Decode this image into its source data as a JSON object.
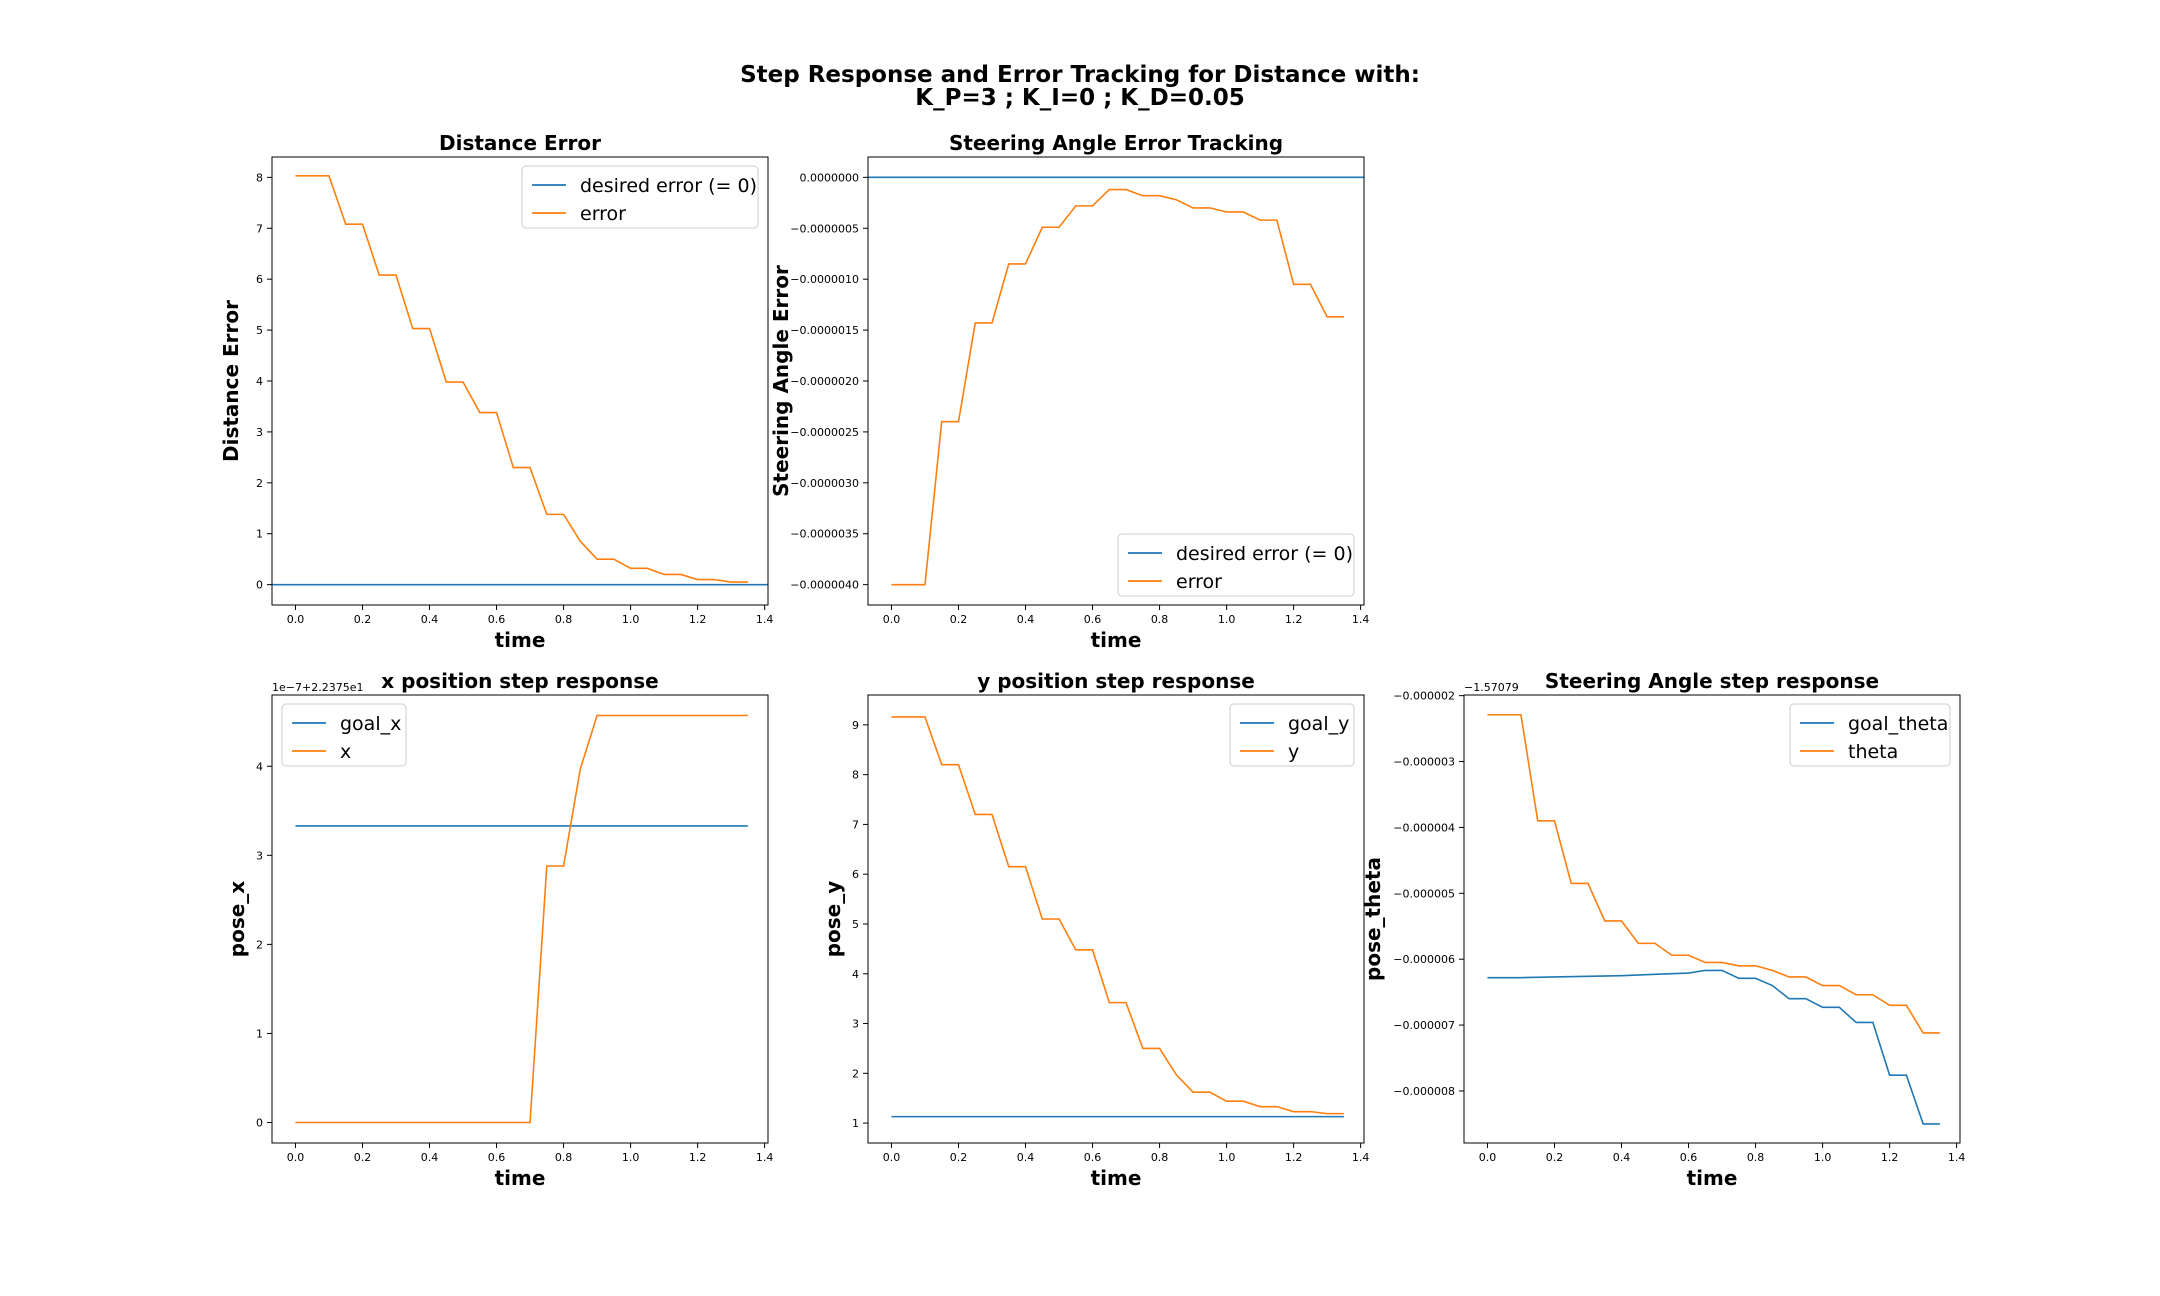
{
  "figure": {
    "title_line1": "Step Response and Error Tracking for Distance with:",
    "title_line2": "K_P=3 ; K_I=0 ; K_D=0.05"
  },
  "colors": {
    "blue": "#1f77b4",
    "orange": "#ff7f0e"
  },
  "chart_data": [
    {
      "type": "line",
      "title": "Distance Error",
      "xlabel": "time",
      "ylabel": "Distance Error",
      "xlim": [
        -0.07,
        1.41
      ],
      "ylim": [
        -0.4,
        8.4
      ],
      "xticks": [
        0.0,
        0.2,
        0.4,
        0.6,
        0.8,
        1.0,
        1.2,
        1.4
      ],
      "xtick_labels": [
        "0.0",
        "0.2",
        "0.4",
        "0.6",
        "0.8",
        "1.0",
        "1.2",
        "1.4"
      ],
      "yticks": [
        0,
        1,
        2,
        3,
        4,
        5,
        6,
        7,
        8
      ],
      "ytick_labels": [
        "0",
        "1",
        "2",
        "3",
        "4",
        "5",
        "6",
        "7",
        "8"
      ],
      "legend": "top-right",
      "series": [
        {
          "name": "desired error (= 0)",
          "color": "#1f77b4",
          "x": [
            -0.07,
            1.41
          ],
          "y": [
            0,
            0
          ]
        },
        {
          "name": "error",
          "color": "#ff7f0e",
          "x": [
            0.0,
            0.1,
            0.15,
            0.2,
            0.25,
            0.3,
            0.35,
            0.4,
            0.45,
            0.5,
            0.55,
            0.6,
            0.65,
            0.7,
            0.75,
            0.8,
            0.85,
            0.9,
            0.95,
            1.0,
            1.05,
            1.1,
            1.15,
            1.2,
            1.25,
            1.3,
            1.35
          ],
          "y": [
            8.03,
            8.03,
            7.08,
            7.08,
            6.08,
            6.08,
            5.03,
            5.03,
            3.98,
            3.98,
            3.38,
            3.38,
            2.3,
            2.3,
            1.38,
            1.38,
            0.85,
            0.5,
            0.5,
            0.32,
            0.32,
            0.2,
            0.2,
            0.1,
            0.1,
            0.05,
            0.05
          ]
        }
      ]
    },
    {
      "type": "line",
      "title": "Steering Angle Error Tracking",
      "xlabel": "time",
      "ylabel": "Steering Angle Error",
      "xlim": [
        -0.07,
        1.41
      ],
      "ylim": [
        -4.2e-06,
        2e-07
      ],
      "xticks": [
        0.0,
        0.2,
        0.4,
        0.6,
        0.8,
        1.0,
        1.2,
        1.4
      ],
      "xtick_labels": [
        "0.0",
        "0.2",
        "0.4",
        "0.6",
        "0.8",
        "1.0",
        "1.2",
        "1.4"
      ],
      "yticks": [
        0.0,
        -5e-07,
        -1e-06,
        -1.5e-06,
        -2e-06,
        -2.5e-06,
        -3e-06,
        -3.5e-06,
        -4e-06
      ],
      "ytick_labels": [
        "0.0000000",
        "−0.0000005",
        "−0.0000010",
        "−0.0000015",
        "−0.0000020",
        "−0.0000025",
        "−0.0000030",
        "−0.0000035",
        "−0.0000040"
      ],
      "legend": "bottom-right",
      "series": [
        {
          "name": "desired error (= 0)",
          "color": "#1f77b4",
          "x": [
            -0.07,
            1.41
          ],
          "y": [
            0,
            0
          ]
        },
        {
          "name": "error",
          "color": "#ff7f0e",
          "x": [
            0.0,
            0.1,
            0.15,
            0.2,
            0.25,
            0.3,
            0.35,
            0.4,
            0.45,
            0.5,
            0.55,
            0.6,
            0.65,
            0.7,
            0.75,
            0.8,
            0.85,
            0.9,
            0.95,
            1.0,
            1.05,
            1.1,
            1.15,
            1.2,
            1.25,
            1.3,
            1.35
          ],
          "y": [
            -4e-06,
            -4e-06,
            -2.4e-06,
            -2.4e-06,
            -1.43e-06,
            -1.43e-06,
            -8.5e-07,
            -8.5e-07,
            -4.9e-07,
            -4.9e-07,
            -2.8e-07,
            -2.8e-07,
            -1.2e-07,
            -1.2e-07,
            -1.8e-07,
            -1.8e-07,
            -2.2e-07,
            -3e-07,
            -3e-07,
            -3.4e-07,
            -3.4e-07,
            -4.2e-07,
            -4.2e-07,
            -1.05e-06,
            -1.05e-06,
            -1.37e-06,
            -1.37e-06
          ]
        }
      ]
    },
    {
      "type": "line",
      "title": "x position step response",
      "xlabel": "time",
      "ylabel": "pose_x",
      "offset_text": "1e−7+2.2375e1",
      "xlim": [
        -0.07,
        1.41
      ],
      "ylim": [
        -0.23,
        4.8
      ],
      "xticks": [
        0.0,
        0.2,
        0.4,
        0.6,
        0.8,
        1.0,
        1.2,
        1.4
      ],
      "xtick_labels": [
        "0.0",
        "0.2",
        "0.4",
        "0.6",
        "0.8",
        "1.0",
        "1.2",
        "1.4"
      ],
      "yticks": [
        0,
        1,
        2,
        3,
        4
      ],
      "ytick_labels": [
        "0",
        "1",
        "2",
        "3",
        "4"
      ],
      "legend": "top-left",
      "series": [
        {
          "name": "goal_x",
          "color": "#1f77b4",
          "x": [
            0.0,
            1.35
          ],
          "y": [
            3.33,
            3.33
          ]
        },
        {
          "name": "x",
          "color": "#ff7f0e",
          "x": [
            0.0,
            0.7,
            0.75,
            0.8,
            0.85,
            0.9,
            1.35
          ],
          "y": [
            0.0,
            0.0,
            2.88,
            2.88,
            3.97,
            4.57,
            4.57
          ]
        }
      ]
    },
    {
      "type": "line",
      "title": "y position step response",
      "xlabel": "time",
      "ylabel": "pose_y",
      "xlim": [
        -0.07,
        1.41
      ],
      "ylim": [
        0.6,
        9.6
      ],
      "xticks": [
        0.0,
        0.2,
        0.4,
        0.6,
        0.8,
        1.0,
        1.2,
        1.4
      ],
      "xtick_labels": [
        "0.0",
        "0.2",
        "0.4",
        "0.6",
        "0.8",
        "1.0",
        "1.2",
        "1.4"
      ],
      "yticks": [
        1,
        2,
        3,
        4,
        5,
        6,
        7,
        8,
        9
      ],
      "ytick_labels": [
        "1",
        "2",
        "3",
        "4",
        "5",
        "6",
        "7",
        "8",
        "9"
      ],
      "legend": "top-right",
      "series": [
        {
          "name": "goal_y",
          "color": "#1f77b4",
          "x": [
            0.0,
            1.35
          ],
          "y": [
            1.13,
            1.13
          ]
        },
        {
          "name": "y",
          "color": "#ff7f0e",
          "x": [
            0.0,
            0.1,
            0.15,
            0.2,
            0.25,
            0.3,
            0.35,
            0.4,
            0.45,
            0.5,
            0.55,
            0.6,
            0.65,
            0.7,
            0.75,
            0.8,
            0.85,
            0.9,
            0.95,
            1.0,
            1.05,
            1.1,
            1.15,
            1.2,
            1.25,
            1.3,
            1.35
          ],
          "y": [
            9.16,
            9.16,
            8.2,
            8.2,
            7.2,
            7.2,
            6.15,
            6.15,
            5.1,
            5.1,
            4.48,
            4.48,
            3.42,
            3.42,
            2.5,
            2.5,
            1.97,
            1.62,
            1.62,
            1.44,
            1.44,
            1.33,
            1.33,
            1.23,
            1.23,
            1.19,
            1.19
          ]
        }
      ]
    },
    {
      "type": "line",
      "title": "Steering Angle step response",
      "xlabel": "time",
      "ylabel": "pose_theta",
      "offset_text": "−1.57079",
      "xlim": [
        -0.07,
        1.41
      ],
      "ylim": [
        -8.79e-06,
        -1.99e-06
      ],
      "xticks": [
        0.0,
        0.2,
        0.4,
        0.6,
        0.8,
        1.0,
        1.2,
        1.4
      ],
      "xtick_labels": [
        "0.0",
        "0.2",
        "0.4",
        "0.6",
        "0.8",
        "1.0",
        "1.2",
        "1.4"
      ],
      "yticks": [
        -2e-06,
        -3e-06,
        -4e-06,
        -5e-06,
        -6e-06,
        -7e-06,
        -8e-06
      ],
      "ytick_labels": [
        "−0.000002",
        "−0.000003",
        "−0.000004",
        "−0.000005",
        "−0.000006",
        "−0.000007",
        "−0.000008"
      ],
      "legend": "top-right",
      "series": [
        {
          "name": "goal_theta",
          "color": "#1f77b4",
          "x": [
            0.0,
            0.1,
            0.2,
            0.3,
            0.4,
            0.5,
            0.6,
            0.65,
            0.7,
            0.75,
            0.8,
            0.85,
            0.9,
            0.95,
            1.0,
            1.05,
            1.1,
            1.15,
            1.2,
            1.25,
            1.3,
            1.35
          ],
          "y": [
            -6.28e-06,
            -6.28e-06,
            -6.27e-06,
            -6.26e-06,
            -6.25e-06,
            -6.23e-06,
            -6.21e-06,
            -6.17e-06,
            -6.17e-06,
            -6.29e-06,
            -6.29e-06,
            -6.4e-06,
            -6.6e-06,
            -6.6e-06,
            -6.73e-06,
            -6.73e-06,
            -6.96e-06,
            -6.96e-06,
            -7.76e-06,
            -7.76e-06,
            -8.5e-06,
            -8.5e-06
          ]
        },
        {
          "name": "theta",
          "color": "#ff7f0e",
          "x": [
            0.0,
            0.1,
            0.15,
            0.2,
            0.25,
            0.3,
            0.35,
            0.4,
            0.45,
            0.5,
            0.55,
            0.6,
            0.65,
            0.7,
            0.75,
            0.8,
            0.85,
            0.9,
            0.95,
            1.0,
            1.05,
            1.1,
            1.15,
            1.2,
            1.25,
            1.3,
            1.35
          ],
          "y": [
            -2.29e-06,
            -2.29e-06,
            -3.9e-06,
            -3.9e-06,
            -4.85e-06,
            -4.85e-06,
            -5.42e-06,
            -5.42e-06,
            -5.76e-06,
            -5.76e-06,
            -5.94e-06,
            -5.94e-06,
            -6.05e-06,
            -6.05e-06,
            -6.1e-06,
            -6.1e-06,
            -6.17e-06,
            -6.27e-06,
            -6.27e-06,
            -6.4e-06,
            -6.4e-06,
            -6.54e-06,
            -6.54e-06,
            -6.7e-06,
            -6.7e-06,
            -7.12e-06,
            -7.12e-06
          ]
        }
      ]
    }
  ]
}
